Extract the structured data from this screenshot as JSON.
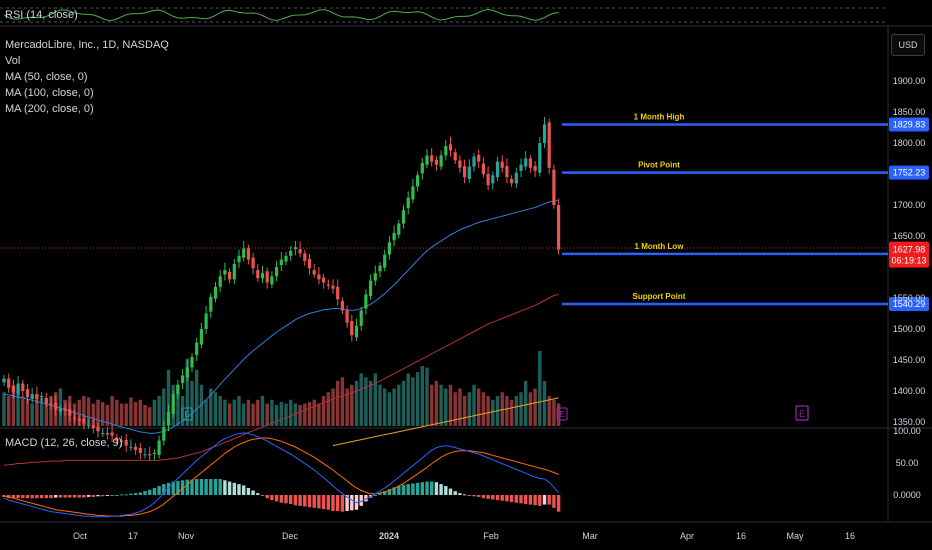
{
  "legend": {
    "rsi": "RSI (14, close)",
    "symbol": "MercadoLibre, Inc., 1D, NASDAQ",
    "vol": "Vol",
    "ma50": "MA (50, close, 0)",
    "ma100": "MA (100, close, 0)",
    "ma200": "MA (200, close, 0)",
    "macd": "MACD (12, 26, close, 9)"
  },
  "currency_button": "USD",
  "colors": {
    "up": "#26a69a",
    "up_bright": "#2ebd4e",
    "down": "#ef5350",
    "vol_up": "#1f5f59",
    "vol_down": "#8a3535",
    "level_line": "#2962ff",
    "ma_blue": "#2f7fd6",
    "ma_red": "#b5322f",
    "ma_orange": "#e8a030",
    "macd_line": "#2962ff",
    "signal_line": "#ff6d00",
    "rsi_line": "#4caf50",
    "earnings": "#9c27b0"
  },
  "chart_data": {
    "type": "candlestick",
    "price_axis": {
      "ticks": [
        1900,
        1850,
        1800,
        1750,
        1700,
        1650,
        1550,
        1500,
        1450,
        1400,
        1350
      ],
      "tick_labels": [
        "1900.00",
        "1850.00",
        "1800.00",
        "",
        "1700.00",
        "1650.00",
        "1550.00",
        "1500.00",
        "1450.00",
        "1400.00",
        "1350.00"
      ]
    },
    "macd_axis": {
      "ticks": [
        100,
        50,
        0
      ],
      "tick_labels": [
        "100.00",
        "50.00",
        "0.0000"
      ]
    },
    "x_axis": {
      "labels": [
        "Oct",
        "17",
        "Nov",
        "Dec",
        "2024",
        "Feb",
        "Mar",
        "Apr",
        "16",
        "May",
        "16"
      ]
    },
    "levels": [
      {
        "name": "1 Month High",
        "value": 1829.83,
        "label": "1829.83"
      },
      {
        "name": "Pivot Point",
        "value": 1752.23,
        "label": "1752.23"
      },
      {
        "name": "1 Month Low",
        "value": 1621.1,
        "label": "1621.10"
      },
      {
        "name": "Support Point",
        "value": 1540.29,
        "label": "1540.29"
      }
    ],
    "current_price": {
      "label": "1627.98",
      "countdown": "06:19:13",
      "value": 1627.98
    },
    "closes": [
      1420,
      1405,
      1398,
      1412,
      1400,
      1390,
      1395,
      1388,
      1392,
      1380,
      1378,
      1370,
      1372,
      1368,
      1360,
      1355,
      1352,
      1348,
      1345,
      1340,
      1335,
      1332,
      1330,
      1328,
      1320,
      1318,
      1312,
      1310,
      1305,
      1300,
      1298,
      1296,
      1300,
      1320,
      1342,
      1366,
      1395,
      1410,
      1425,
      1438,
      1455,
      1478,
      1500,
      1525,
      1552,
      1568,
      1585,
      1595,
      1580,
      1605,
      1618,
      1630,
      1612,
      1598,
      1582,
      1590,
      1575,
      1585,
      1600,
      1612,
      1618,
      1626,
      1632,
      1622,
      1610,
      1598,
      1588,
      1580,
      1575,
      1570,
      1565,
      1548,
      1530,
      1510,
      1490,
      1505,
      1530,
      1556,
      1578,
      1590,
      1602,
      1620,
      1640,
      1655,
      1670,
      1692,
      1712,
      1730,
      1748,
      1768,
      1780,
      1770,
      1765,
      1780,
      1795,
      1788,
      1772,
      1760,
      1745,
      1762,
      1778,
      1770,
      1750,
      1732,
      1748,
      1770,
      1760,
      1745,
      1735,
      1752,
      1765,
      1775,
      1760,
      1755,
      1800,
      1830,
      1760,
      1700,
      1628
    ],
    "ma50": [
      1395,
      1394,
      1392,
      1390,
      1389,
      1387,
      1385,
      1383,
      1381,
      1379,
      1377,
      1375,
      1372,
      1370,
      1368,
      1365,
      1363,
      1360,
      1358,
      1356,
      1353,
      1351,
      1349,
      1347,
      1344,
      1342,
      1340,
      1338,
      1336,
      1334,
      1333,
      1332,
      1332,
      1333,
      1335,
      1338,
      1342,
      1347,
      1352,
      1358,
      1364,
      1371,
      1378,
      1386,
      1394,
      1402,
      1411,
      1419,
      1427,
      1435,
      1443,
      1451,
      1458,
      1465,
      1471,
      1477,
      1483,
      1489,
      1495,
      1500,
      1505,
      1510,
      1515,
      1519,
      1522,
      1525,
      1527,
      1529,
      1531,
      1532,
      1533,
      1533,
      1532,
      1531,
      1530,
      1531,
      1533,
      1536,
      1540,
      1545,
      1551,
      1557,
      1564,
      1571,
      1579,
      1587,
      1595,
      1603,
      1611,
      1619,
      1626,
      1632,
      1637,
      1642,
      1647,
      1652,
      1656,
      1660,
      1663,
      1666,
      1669,
      1672,
      1674,
      1676,
      1678,
      1680,
      1682,
      1684,
      1686,
      1688,
      1690,
      1692,
      1694,
      1696,
      1699,
      1702,
      1705,
      1707,
      1707
    ],
    "ma100": [
      1280,
      1281,
      1282,
      1283,
      1283,
      1284,
      1285,
      1285,
      1286,
      1286,
      1287,
      1287,
      1287,
      1288,
      1288,
      1288,
      1288,
      1288,
      1288,
      1288,
      1288,
      1288,
      1288,
      1288,
      1288,
      1288,
      1288,
      1288,
      1288,
      1288,
      1288,
      1288,
      1288,
      1288,
      1289,
      1290,
      1291,
      1292,
      1294,
      1296,
      1298,
      1300,
      1302,
      1305,
      1308,
      1311,
      1314,
      1317,
      1320,
      1323,
      1326,
      1330,
      1333,
      1336,
      1339,
      1342,
      1345,
      1348,
      1351,
      1354,
      1357,
      1360,
      1363,
      1366,
      1369,
      1372,
      1375,
      1378,
      1381,
      1384,
      1387,
      1390,
      1392,
      1395,
      1397,
      1400,
      1403,
      1406,
      1409,
      1412,
      1416,
      1420,
      1424,
      1428,
      1432,
      1436,
      1440,
      1444,
      1448,
      1452,
      1456,
      1460,
      1464,
      1468,
      1472,
      1476,
      1480,
      1484,
      1488,
      1492,
      1496,
      1500,
      1504,
      1508,
      1511,
      1514,
      1517,
      1520,
      1523,
      1526,
      1529,
      1532,
      1535,
      1538,
      1542,
      1546,
      1550,
      1554,
      1556
    ],
    "ma200": [
      1200,
      1200,
      1200,
      1200,
      1200,
      1200,
      1200,
      1200,
      1200,
      1200,
      1200,
      1200,
      1200,
      1200,
      1200,
      1200,
      1200,
      1200,
      1200,
      1200,
      1200,
      1200,
      1200,
      1200,
      1200,
      1200,
      1200,
      1200,
      1200,
      1200,
      1200,
      1200,
      1200,
      1200,
      1200,
      1200,
      1200,
      1200,
      1200,
      1200,
      1200,
      1200,
      1200,
      1200,
      1200,
      1200,
      1200,
      1200,
      1200,
      1200,
      1200,
      1200,
      1200,
      1200,
      1200,
      1200,
      1200,
      1200,
      1200,
      1200,
      1200,
      1200,
      1200,
      1200,
      1200,
      1200,
      1200,
      1200,
      1200,
      1200,
      1200,
      1200,
      1200,
      1200,
      1200,
      1200,
      1200,
      1200,
      1200,
      1200,
      1200,
      1200,
      1200,
      1200,
      1200,
      1200,
      1200,
      1200,
      1200,
      1200,
      1200,
      1200,
      1200,
      1200,
      1200,
      1200,
      1200,
      1200,
      1200,
      1200,
      1200,
      1200,
      1200,
      1200,
      1200,
      1200,
      1200,
      1200,
      1200,
      1200,
      1200,
      1200,
      1200,
      1200,
      1200,
      1200,
      1200,
      1200,
      1200
    ],
    "volumes": [
      0.45,
      0.4,
      0.55,
      0.5,
      0.4,
      0.35,
      0.3,
      0.42,
      0.38,
      0.35,
      0.4,
      0.45,
      0.5,
      0.35,
      0.4,
      0.3,
      0.35,
      0.4,
      0.38,
      0.3,
      0.35,
      0.32,
      0.28,
      0.4,
      0.35,
      0.3,
      0.3,
      0.38,
      0.32,
      0.35,
      0.28,
      0.25,
      0.35,
      0.4,
      0.5,
      0.75,
      0.55,
      0.55,
      0.4,
      0.9,
      0.6,
      0.75,
      0.55,
      0.35,
      0.5,
      0.45,
      0.4,
      0.35,
      0.3,
      0.35,
      0.4,
      0.3,
      0.35,
      0.3,
      0.35,
      0.4,
      0.3,
      0.35,
      0.28,
      0.32,
      0.3,
      0.35,
      0.3,
      0.28,
      0.3,
      0.32,
      0.35,
      0.3,
      0.4,
      0.45,
      0.5,
      0.6,
      0.65,
      0.5,
      0.55,
      0.6,
      0.7,
      0.65,
      0.6,
      0.7,
      0.55,
      0.5,
      0.45,
      0.5,
      0.55,
      0.6,
      0.7,
      0.65,
      0.72,
      0.8,
      0.78,
      0.55,
      0.6,
      0.55,
      0.5,
      0.55,
      0.45,
      0.5,
      0.4,
      0.45,
      0.55,
      0.5,
      0.45,
      0.4,
      0.35,
      0.4,
      0.45,
      0.4,
      0.35,
      0.4,
      0.45,
      0.6,
      0.45,
      0.5,
      1.0,
      0.6,
      0.4,
      0.35,
      0.3
    ],
    "macd": [
      -5,
      -8,
      -10,
      -12,
      -14,
      -16,
      -18,
      -20,
      -22,
      -24,
      -26,
      -27,
      -28,
      -29,
      -30,
      -31,
      -32,
      -33,
      -33,
      -34,
      -34,
      -34,
      -34,
      -33,
      -33,
      -32,
      -31,
      -30,
      -28,
      -26,
      -22,
      -18,
      -12,
      -5,
      3,
      11,
      19,
      26,
      33,
      40,
      47,
      54,
      60,
      66,
      72,
      78,
      84,
      88,
      91,
      94,
      96,
      97,
      96,
      94,
      91,
      88,
      84,
      80,
      76,
      72,
      68,
      64,
      59,
      54,
      49,
      44,
      39,
      33,
      27,
      21,
      14,
      8,
      2,
      -3,
      -8,
      -12,
      -10,
      -6,
      -2,
      2,
      6,
      11,
      16,
      22,
      28,
      34,
      40,
      46,
      52,
      58,
      64,
      70,
      74,
      76,
      77,
      76,
      74,
      72,
      70,
      68,
      66,
      64,
      61,
      58,
      55,
      52,
      49,
      46,
      43,
      40,
      37,
      34,
      31,
      28,
      26,
      25,
      20,
      12,
      4
    ],
    "signal": [
      -2,
      -3,
      -5,
      -7,
      -9,
      -11,
      -13,
      -15,
      -17,
      -19,
      -21,
      -23,
      -24,
      -25,
      -26,
      -27,
      -28,
      -29,
      -30,
      -31,
      -32,
      -32,
      -33,
      -33,
      -33,
      -33,
      -32,
      -32,
      -31,
      -30,
      -28,
      -26,
      -23,
      -19,
      -14,
      -8,
      -2,
      4,
      10,
      16,
      23,
      29,
      35,
      41,
      47,
      53,
      59,
      65,
      70,
      75,
      79,
      82,
      85,
      87,
      88,
      89,
      89,
      88,
      86,
      84,
      81,
      78,
      75,
      71,
      67,
      63,
      59,
      54,
      49,
      44,
      39,
      33,
      28,
      22,
      16,
      11,
      7,
      4,
      2,
      2,
      3,
      5,
      7,
      10,
      14,
      18,
      23,
      28,
      33,
      38,
      43,
      49,
      54,
      59,
      63,
      66,
      68,
      69,
      69,
      69,
      68,
      67,
      66,
      64,
      62,
      60,
      58,
      56,
      54,
      52,
      50,
      48,
      46,
      44,
      42,
      40,
      38,
      35,
      32
    ],
    "hist": [
      -3,
      -5,
      -5,
      -5,
      -5,
      -5,
      -5,
      -5,
      -5,
      -5,
      -5,
      -4,
      -4,
      -4,
      -4,
      -4,
      -4,
      -4,
      -3,
      -3,
      -2,
      -2,
      -1,
      0,
      0,
      1,
      1,
      2,
      3,
      4,
      6,
      8,
      11,
      14,
      17,
      19,
      21,
      22,
      23,
      24,
      24,
      25,
      25,
      25,
      25,
      25,
      25,
      23,
      21,
      19,
      17,
      15,
      11,
      7,
      3,
      -1,
      -5,
      -8,
      -10,
      -12,
      -13,
      -14,
      -16,
      -17,
      -18,
      -19,
      -20,
      -21,
      -22,
      -23,
      -25,
      -25,
      -26,
      -25,
      -24,
      -23,
      -17,
      -10,
      -4,
      0,
      3,
      6,
      9,
      12,
      14,
      16,
      17,
      18,
      19,
      20,
      21,
      21,
      20,
      17,
      14,
      10,
      6,
      3,
      1,
      -1,
      -2,
      -3,
      -5,
      -6,
      -7,
      -8,
      -9,
      -10,
      -11,
      -12,
      -13,
      -14,
      -15,
      -16,
      -17,
      -15,
      -15,
      -20,
      -26
    ]
  }
}
